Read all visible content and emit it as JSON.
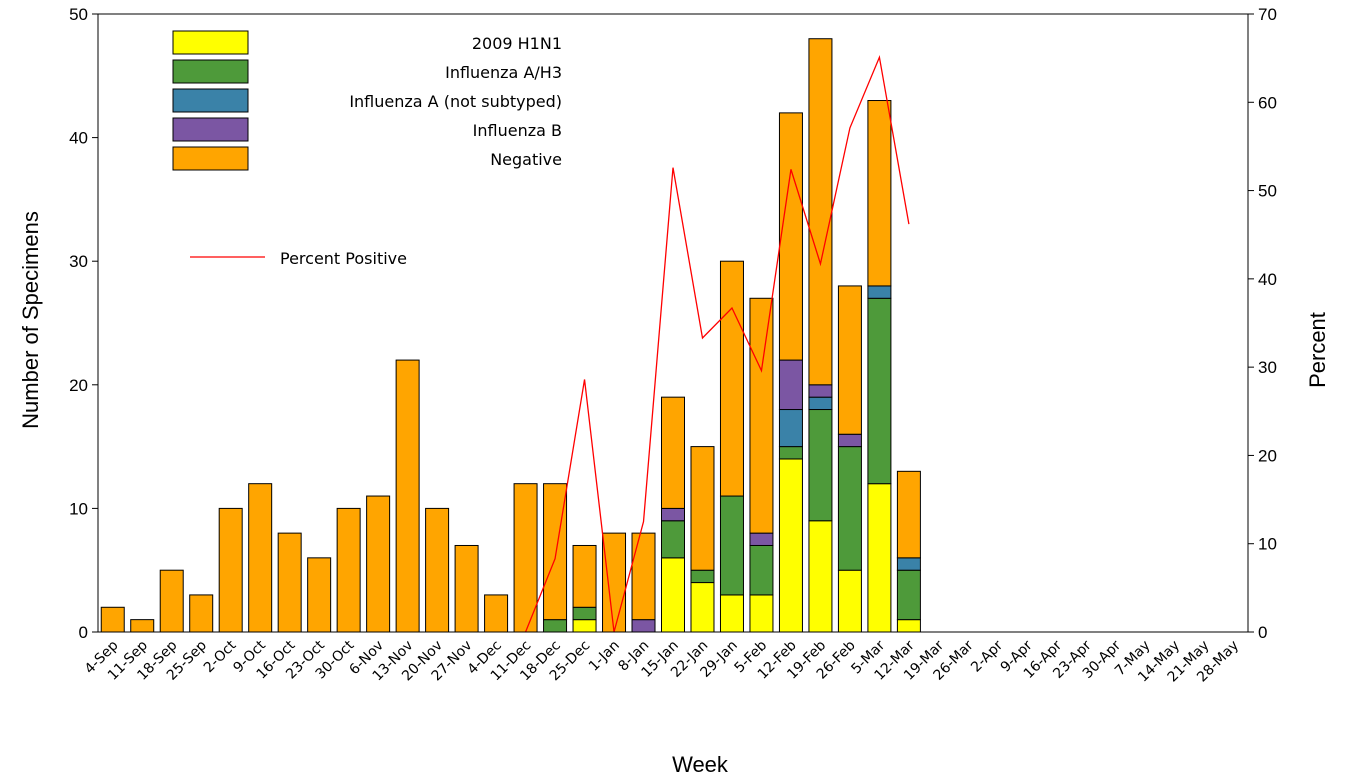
{
  "chart_data": {
    "type": "bar",
    "stacked": true,
    "xlabel": "Week",
    "ylabel": "Number of Specimens",
    "y2label": "Percent",
    "ylim": [
      0,
      50
    ],
    "y2lim": [
      0,
      70
    ],
    "yticks": [
      0,
      10,
      20,
      30,
      40,
      50
    ],
    "y2ticks": [
      0,
      10,
      20,
      30,
      40,
      50,
      60,
      70
    ],
    "categories": [
      "4-Sep",
      "11-Sep",
      "18-Sep",
      "25-Sep",
      "2-Oct",
      "9-Oct",
      "16-Oct",
      "23-Oct",
      "30-Oct",
      "6-Nov",
      "13-Nov",
      "20-Nov",
      "27-Nov",
      "4-Dec",
      "11-Dec",
      "18-Dec",
      "25-Dec",
      "1-Jan",
      "8-Jan",
      "15-Jan",
      "22-Jan",
      "29-Jan",
      "5-Feb",
      "12-Feb",
      "19-Feb",
      "26-Feb",
      "5-Mar",
      "12-Mar",
      "19-Mar",
      "26-Mar",
      "2-Apr",
      "9-Apr",
      "16-Apr",
      "23-Apr",
      "30-Apr",
      "7-May",
      "14-May",
      "21-May",
      "28-May"
    ],
    "series": [
      {
        "name": "2009 H1N1",
        "color": "#ffff00",
        "values": [
          0,
          0,
          0,
          0,
          0,
          0,
          0,
          0,
          0,
          0,
          0,
          0,
          0,
          0,
          0,
          0,
          1,
          0,
          0,
          6,
          4,
          3,
          3,
          14,
          9,
          5,
          12,
          1,
          0,
          0,
          0,
          0,
          0,
          0,
          0,
          0,
          0,
          0,
          0
        ]
      },
      {
        "name": "Influenza A/H3",
        "color": "#4e9a3a",
        "values": [
          0,
          0,
          0,
          0,
          0,
          0,
          0,
          0,
          0,
          0,
          0,
          0,
          0,
          0,
          0,
          1,
          1,
          0,
          0,
          3,
          1,
          8,
          4,
          1,
          9,
          10,
          15,
          4,
          0,
          0,
          0,
          0,
          0,
          0,
          0,
          0,
          0,
          0,
          0
        ]
      },
      {
        "name": "Influenza A (not subtyped)",
        "color": "#3a82a8",
        "values": [
          0,
          0,
          0,
          0,
          0,
          0,
          0,
          0,
          0,
          0,
          0,
          0,
          0,
          0,
          0,
          0,
          0,
          0,
          0,
          0,
          0,
          0,
          0,
          3,
          1,
          0,
          1,
          1,
          0,
          0,
          0,
          0,
          0,
          0,
          0,
          0,
          0,
          0,
          0
        ]
      },
      {
        "name": "Influenza B",
        "color": "#7b56a3",
        "values": [
          0,
          0,
          0,
          0,
          0,
          0,
          0,
          0,
          0,
          0,
          0,
          0,
          0,
          0,
          0,
          0,
          0,
          0,
          1,
          1,
          0,
          0,
          1,
          4,
          1,
          1,
          0,
          0,
          0,
          0,
          0,
          0,
          0,
          0,
          0,
          0,
          0,
          0,
          0
        ]
      },
      {
        "name": "Negative",
        "color": "#ffa500",
        "values": [
          2,
          1,
          5,
          3,
          10,
          12,
          8,
          6,
          10,
          11,
          22,
          10,
          7,
          3,
          12,
          11,
          5,
          8,
          7,
          9,
          10,
          19,
          19,
          20,
          28,
          12,
          15,
          7,
          0,
          0,
          0,
          0,
          0,
          0,
          0,
          0,
          0,
          0,
          0
        ]
      }
    ],
    "line": {
      "name": "Percent Positive",
      "color": "#ff0000",
      "axis": "right",
      "start_index": 14,
      "values": [
        0,
        8.3,
        28.6,
        0,
        12.5,
        52.6,
        33.3,
        36.7,
        29.6,
        52.4,
        41.7,
        57.1,
        65.1,
        46.2
      ]
    },
    "legend_position": "top-left"
  }
}
